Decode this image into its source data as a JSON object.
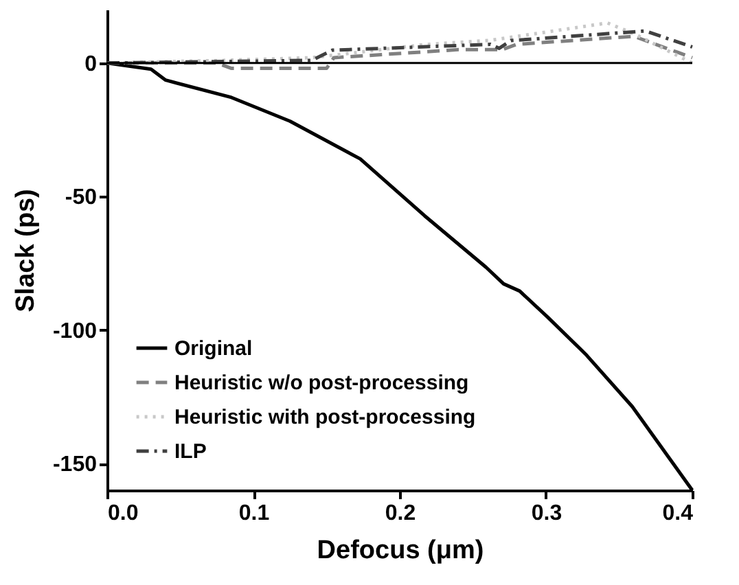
{
  "chart_data": {
    "type": "line",
    "xlabel": "Defocus (μm)",
    "ylabel": "Slack (ps)",
    "xlim": [
      0,
      0.4
    ],
    "xticks": [
      {
        "value": 0,
        "label": "0.0"
      },
      {
        "value": 0.1,
        "label": "0.1"
      },
      {
        "value": 0.2,
        "label": "0.2"
      },
      {
        "value": 0.3,
        "label": "0.3"
      },
      {
        "value": 0.4,
        "label": "0.4"
      }
    ],
    "ylim": [
      -160,
      20
    ],
    "yticks": [
      0,
      -50,
      -100,
      -150
    ],
    "grid": false,
    "legend": "bottom left",
    "marker": "none",
    "ref_lines": [
      {
        "axis": "y",
        "value": 0,
        "color": "#000000"
      }
    ],
    "series": [
      {
        "name": "Original",
        "color": "#000000",
        "line_style": "solid",
        "x": [
          0,
          0.03,
          0.04,
          0.085,
          0.125,
          0.173,
          0.217,
          0.259,
          0.271,
          0.282,
          0.301,
          0.327,
          0.359,
          0.4
        ],
        "values": [
          0,
          -2.3,
          -6.4,
          -12.9,
          -21.8,
          -35.9,
          -57.2,
          -76.5,
          -82.7,
          -85.4,
          -95.1,
          -109,
          -128.7,
          -160
        ]
      },
      {
        "name": "Heuristic w/o post-processing",
        "color": "#808080",
        "line_style": "dashed",
        "x": [
          0,
          0.075,
          0.085,
          0.15,
          0.155,
          0.24,
          0.27,
          0.28,
          0.36,
          0.39,
          0.4
        ],
        "values": [
          0,
          0,
          -2,
          -2,
          2,
          5,
          5,
          7,
          10,
          4,
          2
        ]
      },
      {
        "name": "Heuristic with post-processing",
        "color": "#c8c8c8",
        "line_style": "dotted",
        "x": [
          0,
          0.08,
          0.14,
          0.217,
          0.262,
          0.342,
          0.36,
          0.4
        ],
        "values": [
          0,
          1,
          2,
          6.9,
          8.5,
          15,
          11,
          0
        ]
      },
      {
        "name": "ILP",
        "color": "#404040",
        "line_style": "dashdot",
        "x": [
          0,
          0.14,
          0.154,
          0.262,
          0.268,
          0.276,
          0.368,
          0.4
        ],
        "values": [
          0,
          1,
          4.8,
          7,
          5.5,
          8.4,
          12,
          6
        ]
      }
    ]
  }
}
